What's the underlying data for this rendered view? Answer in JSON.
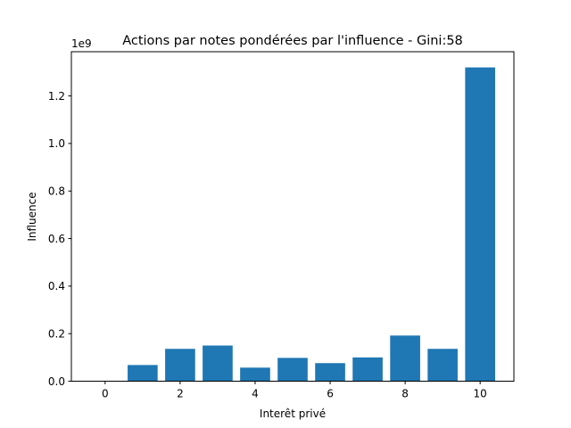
{
  "chart_data": {
    "type": "bar",
    "title": "Actions par notes pondérées par l'influence - Gini:58",
    "xlabel": "Interêt privé",
    "ylabel": "Influence",
    "y_offset_label": "1e9",
    "y_scale": 1000000000,
    "x": [
      0,
      1,
      2,
      3,
      4,
      5,
      6,
      7,
      8,
      9,
      10
    ],
    "values": [
      0,
      68000000,
      136000000,
      150000000,
      57000000,
      98000000,
      76000000,
      100000000,
      192000000,
      136000000,
      1320000000
    ],
    "bar_width": 0.8,
    "xlim": [
      -0.9,
      10.9
    ],
    "ylim": [
      0,
      1386000000
    ],
    "xticks": [
      0,
      2,
      4,
      6,
      8,
      10
    ],
    "xtick_labels": [
      "0",
      "2",
      "4",
      "6",
      "8",
      "10"
    ],
    "yticks": [
      0,
      0.2,
      0.4,
      0.6,
      0.8,
      1.0,
      1.2
    ],
    "ytick_labels": [
      "0.0",
      "0.2",
      "0.4",
      "0.6",
      "0.8",
      "1.0",
      "1.2"
    ],
    "bar_color": "#1f77b4",
    "grid": false,
    "legend": false
  }
}
